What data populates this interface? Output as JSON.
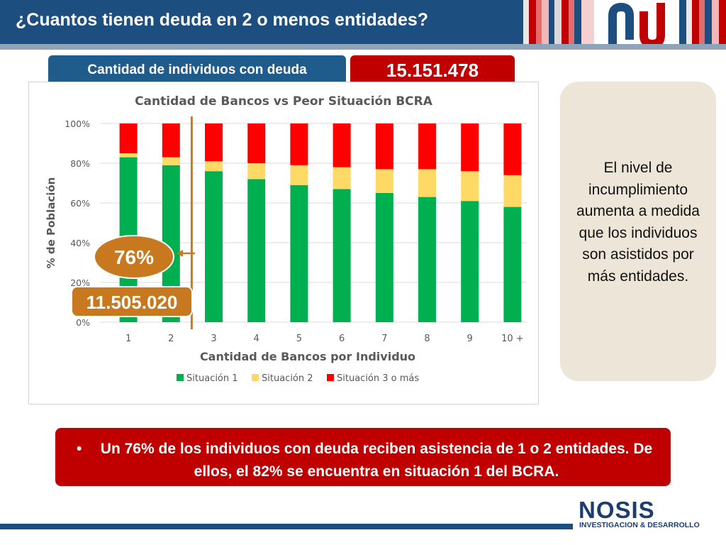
{
  "header": {
    "title": "¿Cuantos tienen deuda en 2 o menos entidades?",
    "bar_color": "#1c4e80"
  },
  "summary": {
    "label": "Cantidad de individuos con deuda",
    "total": "15.151.478"
  },
  "annotations": {
    "percent_badge": "76%",
    "count_badge": "11.505.020"
  },
  "side_panel": {
    "text": "El nivel de incumplimiento aumenta a medida que los individuos son asistidos por más entidades."
  },
  "bottom_note": {
    "bullet": "•",
    "text": "Un 76% de los individuos con deuda reciben asistencia de 1 o 2 entidades. De ellos, el 82% se encuentra en situación 1 del BCRA."
  },
  "footer": {
    "brand": "NOSIS",
    "tagline": "INVESTIGACION & DESARROLLO"
  },
  "chart_data": {
    "type": "bar",
    "stacked": true,
    "title": "Cantidad de Bancos vs Peor Situación BCRA",
    "xlabel": "Cantidad de Bancos por Individuo",
    "ylabel": "% de Población",
    "ylim": [
      0,
      100
    ],
    "yticks": [
      "0%",
      "20%",
      "40%",
      "60%",
      "80%",
      "100%"
    ],
    "grid": true,
    "legend_position": "bottom",
    "categories": [
      "1",
      "2",
      "3",
      "4",
      "5",
      "6",
      "7",
      "8",
      "9",
      "10 +"
    ],
    "series": [
      {
        "name": "Situación 1",
        "color": "#00b050",
        "values": [
          83,
          79,
          76,
          72,
          69,
          67,
          65,
          63,
          61,
          58
        ]
      },
      {
        "name": "Situación 2",
        "color": "#ffd966",
        "values": [
          2,
          4,
          5,
          8,
          10,
          11,
          12,
          14,
          15,
          16
        ]
      },
      {
        "name": "Situación 3 o más",
        "color": "#ff0000",
        "values": [
          15,
          17,
          19,
          20,
          21,
          22,
          23,
          23,
          24,
          26
        ]
      }
    ],
    "separator_after_category": "2"
  }
}
